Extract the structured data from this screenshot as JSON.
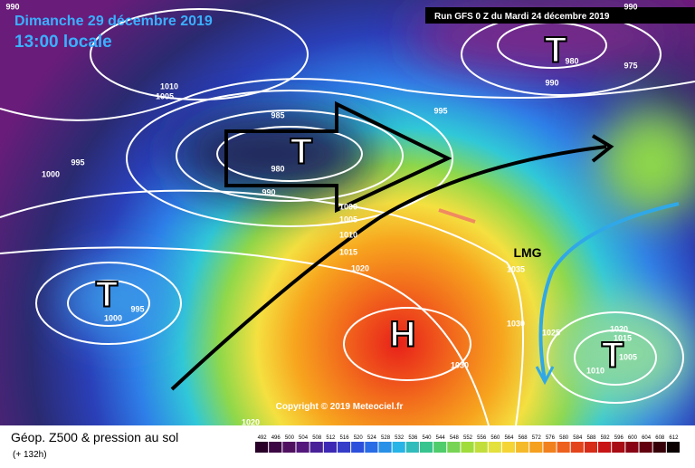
{
  "header": {
    "date": "Dimanche 29 décembre 2019",
    "time": "13:00 locale",
    "run": "Run GFS 0 Z du Mardi 24 décembre 2019"
  },
  "centers": [
    "T",
    "T",
    "T",
    "T",
    "H"
  ],
  "annotation": "LMG",
  "isobar_labels": [
    "990",
    "990",
    "980",
    "975",
    "990",
    "1010",
    "1005",
    "985",
    "995",
    "980",
    "995",
    "990",
    "1000",
    "1000",
    "1005",
    "1010",
    "1015",
    "1020",
    "1035",
    "995",
    "1000",
    "1030",
    "1025",
    "1020",
    "1015",
    "1005",
    "1010",
    "1030",
    "1020"
  ],
  "copyright": "Copyright © 2019 Meteociel.fr",
  "footer": {
    "title": "Géop. Z500 & pression au sol",
    "lead": "(+ 132h)"
  },
  "colorbar": {
    "labels": [
      "492",
      "496",
      "500",
      "504",
      "508",
      "512",
      "516",
      "520",
      "524",
      "528",
      "532",
      "536",
      "540",
      "544",
      "548",
      "552",
      "556",
      "560",
      "564",
      "568",
      "572",
      "576",
      "580",
      "584",
      "588",
      "592",
      "596",
      "600",
      "604",
      "608",
      "612"
    ]
  }
}
